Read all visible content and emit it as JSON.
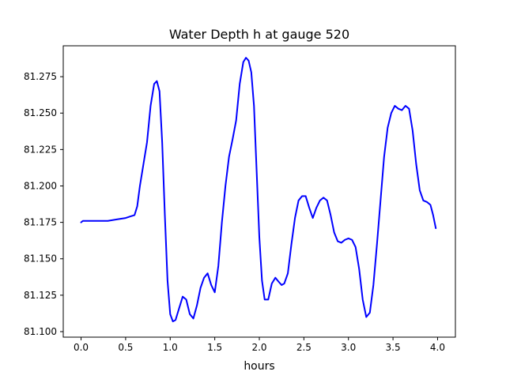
{
  "chart_data": {
    "type": "line",
    "title": "Water Depth h at gauge 520",
    "xlabel": "hours",
    "ylabel": "",
    "xlim": [
      -0.2,
      4.2
    ],
    "ylim": [
      81.0962,
      81.2962
    ],
    "xticks": [
      0.0,
      0.5,
      1.0,
      1.5,
      2.0,
      2.5,
      3.0,
      3.5,
      4.0
    ],
    "xtick_labels": [
      "0.0",
      "0.5",
      "1.0",
      "1.5",
      "2.0",
      "2.5",
      "3.0",
      "3.5",
      "4.0"
    ],
    "yticks": [
      81.1,
      81.125,
      81.15,
      81.175,
      81.2,
      81.225,
      81.25,
      81.275
    ],
    "ytick_labels": [
      "81.100",
      "81.125",
      "81.150",
      "81.175",
      "81.200",
      "81.225",
      "81.250",
      "81.275"
    ],
    "grid": false,
    "series": [
      {
        "color": "#0000ff",
        "x": [
          0.0,
          0.02,
          0.05,
          0.1,
          0.2,
          0.3,
          0.4,
          0.5,
          0.55,
          0.6,
          0.63,
          0.66,
          0.7,
          0.74,
          0.78,
          0.82,
          0.85,
          0.88,
          0.91,
          0.94,
          0.97,
          1.0,
          1.03,
          1.06,
          1.1,
          1.14,
          1.18,
          1.22,
          1.26,
          1.3,
          1.34,
          1.38,
          1.42,
          1.46,
          1.5,
          1.54,
          1.58,
          1.62,
          1.66,
          1.7,
          1.74,
          1.78,
          1.82,
          1.85,
          1.88,
          1.91,
          1.94,
          1.97,
          2.0,
          2.03,
          2.06,
          2.1,
          2.14,
          2.18,
          2.22,
          2.25,
          2.28,
          2.32,
          2.36,
          2.4,
          2.44,
          2.48,
          2.52,
          2.56,
          2.6,
          2.64,
          2.68,
          2.72,
          2.76,
          2.8,
          2.84,
          2.88,
          2.92,
          2.96,
          3.0,
          3.04,
          3.08,
          3.12,
          3.16,
          3.2,
          3.24,
          3.28,
          3.32,
          3.36,
          3.4,
          3.44,
          3.48,
          3.52,
          3.56,
          3.6,
          3.64,
          3.68,
          3.72,
          3.76,
          3.8,
          3.84,
          3.88,
          3.92,
          3.95,
          3.98
        ],
        "values": [
          81.175,
          81.176,
          81.176,
          81.176,
          81.176,
          81.176,
          81.177,
          81.178,
          81.179,
          81.18,
          81.186,
          81.2,
          81.215,
          81.23,
          81.255,
          81.27,
          81.272,
          81.265,
          81.23,
          81.18,
          81.135,
          81.112,
          81.107,
          81.108,
          81.116,
          81.124,
          81.122,
          81.112,
          81.109,
          81.118,
          81.13,
          81.137,
          81.14,
          81.132,
          81.127,
          81.145,
          81.175,
          81.2,
          81.22,
          81.232,
          81.245,
          81.27,
          81.285,
          81.288,
          81.286,
          81.278,
          81.255,
          81.21,
          81.165,
          81.135,
          81.122,
          81.122,
          81.133,
          81.137,
          81.134,
          81.132,
          81.133,
          81.14,
          81.16,
          81.178,
          81.19,
          81.193,
          81.193,
          81.185,
          81.178,
          81.185,
          81.19,
          81.192,
          81.19,
          81.18,
          81.168,
          81.162,
          81.161,
          81.163,
          81.164,
          81.163,
          81.158,
          81.143,
          81.122,
          81.11,
          81.113,
          81.132,
          81.16,
          81.19,
          81.22,
          81.24,
          81.25,
          81.255,
          81.253,
          81.252,
          81.255,
          81.253,
          81.238,
          81.215,
          81.197,
          81.19,
          81.189,
          81.187,
          81.18,
          81.171
        ]
      }
    ]
  }
}
